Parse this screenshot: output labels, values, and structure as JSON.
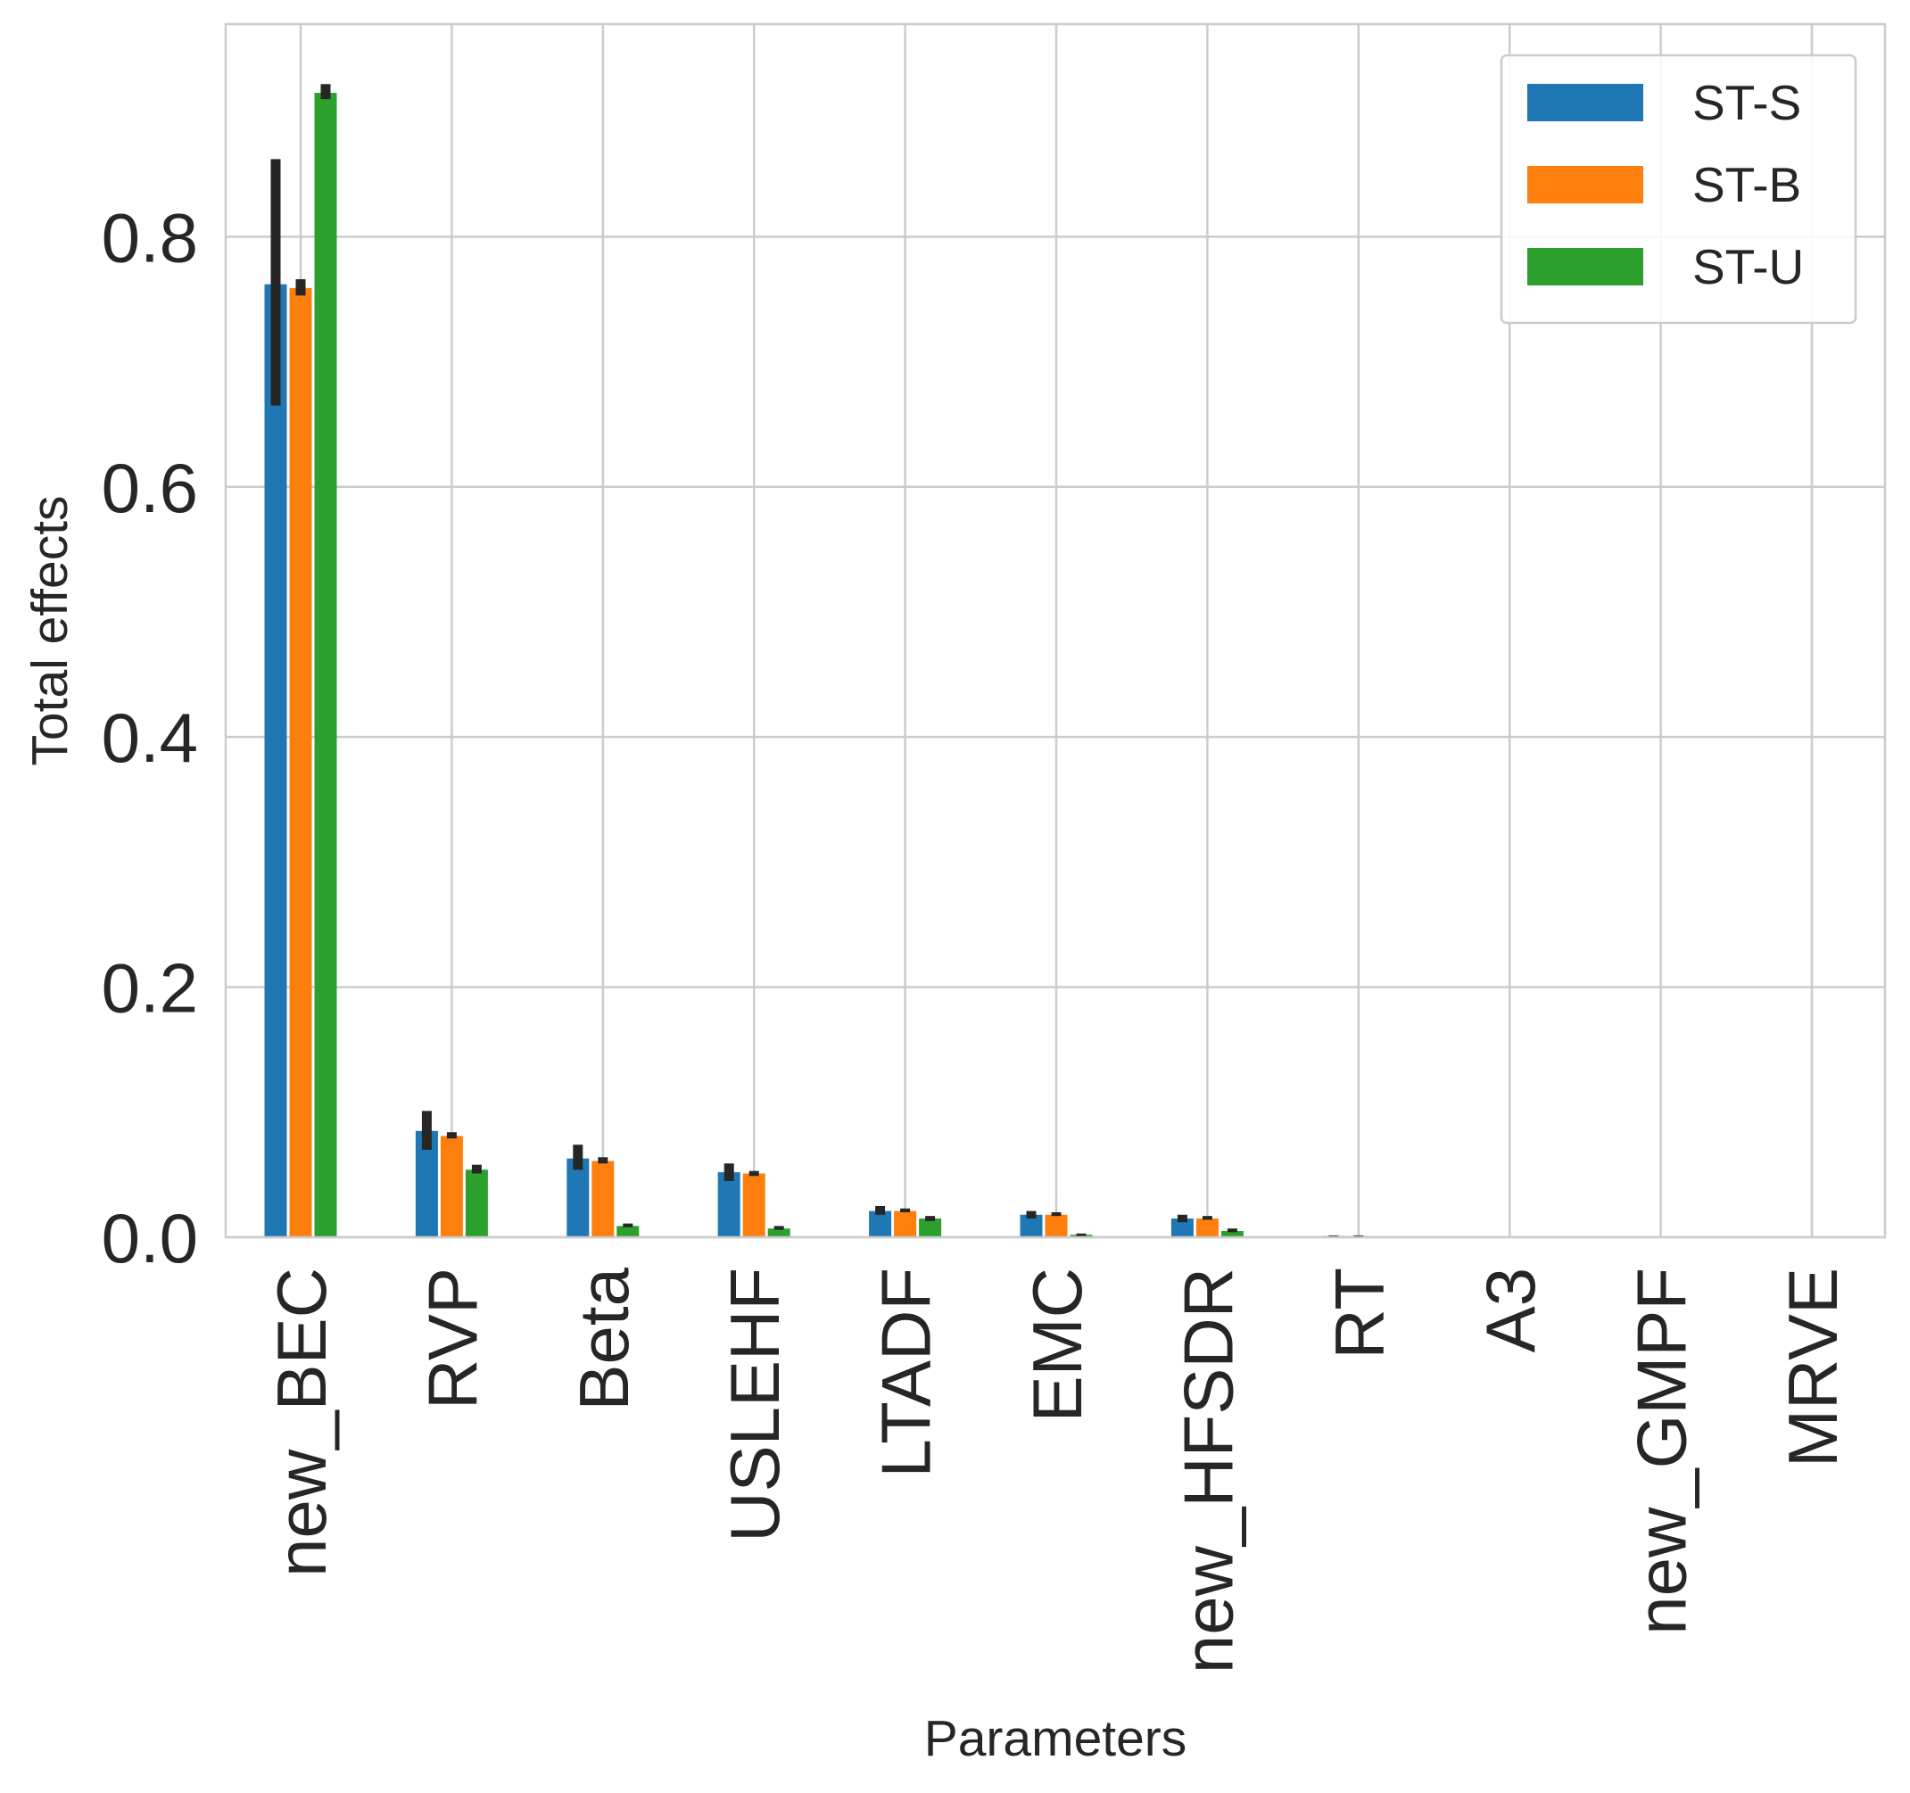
{
  "chart_data": {
    "type": "bar",
    "title": "",
    "xlabel": "Parameters",
    "ylabel": "Total effects",
    "ylim": [
      0,
      0.97
    ],
    "yticks": [
      "0.0",
      "0.2",
      "0.4",
      "0.6",
      "0.8"
    ],
    "ytick_values": [
      0.0,
      0.2,
      0.4,
      0.6,
      0.8
    ],
    "grid": true,
    "legend_position": "top-right",
    "categories": [
      "new_BEC",
      "RVP",
      "Beta",
      "USLEHF",
      "LTADF",
      "EMC",
      "new_HFSDR",
      "RT",
      "A3",
      "new_GMPF",
      "MRVE"
    ],
    "series": [
      {
        "name": "ST-S",
        "color": "#1f77b4",
        "values": [
          0.762,
          0.085,
          0.063,
          0.052,
          0.021,
          0.018,
          0.015,
          0.001,
          0.0,
          0.0,
          0.0
        ],
        "error_low": [
          0.665,
          0.07,
          0.054,
          0.045,
          0.018,
          0.015,
          0.012,
          0.0005,
          0.0,
          0.0,
          0.0
        ],
        "error_high": [
          0.862,
          0.101,
          0.074,
          0.059,
          0.025,
          0.021,
          0.018,
          0.0015,
          0.0,
          0.0,
          0.0
        ]
      },
      {
        "name": "ST-B",
        "color": "#ff7f0e",
        "values": [
          0.759,
          0.081,
          0.061,
          0.051,
          0.021,
          0.018,
          0.015,
          0.001,
          0.0,
          0.0,
          0.0
        ],
        "error_low": [
          0.753,
          0.079,
          0.059,
          0.049,
          0.02,
          0.017,
          0.014,
          0.0005,
          0.0,
          0.0,
          0.0
        ],
        "error_high": [
          0.766,
          0.084,
          0.064,
          0.053,
          0.023,
          0.02,
          0.017,
          0.0015,
          0.0,
          0.0,
          0.0
        ]
      },
      {
        "name": "ST-U",
        "color": "#2ca02c",
        "values": [
          0.915,
          0.054,
          0.009,
          0.007,
          0.015,
          0.002,
          0.005,
          0.0,
          0.0,
          0.0,
          0.0
        ],
        "error_low": [
          0.91,
          0.051,
          0.008,
          0.006,
          0.013,
          0.001,
          0.004,
          0.0,
          0.0,
          0.0,
          0.0
        ],
        "error_high": [
          0.922,
          0.058,
          0.011,
          0.009,
          0.017,
          0.003,
          0.007,
          0.0,
          0.0,
          0.0,
          0.0
        ]
      }
    ]
  }
}
